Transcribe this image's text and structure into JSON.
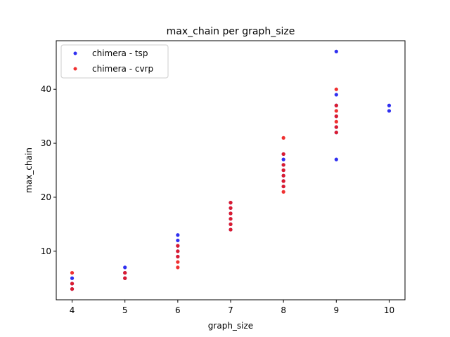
{
  "chart_data": {
    "type": "scatter",
    "title": "max_chain per graph_size",
    "xlabel": "graph_size",
    "ylabel": "max_chain",
    "xlim": [
      3.7,
      10.3
    ],
    "ylim": [
      1.0,
      49.0
    ],
    "xticks": [
      4,
      5,
      6,
      7,
      8,
      9,
      10
    ],
    "yticks": [
      10,
      20,
      30,
      40
    ],
    "grid": false,
    "legend_position": "top-left",
    "series": [
      {
        "name": "chimera - tsp",
        "color": "#1a1aee",
        "points": [
          [
            4,
            3
          ],
          [
            4,
            4
          ],
          [
            4,
            5
          ],
          [
            5,
            5
          ],
          [
            5,
            6
          ],
          [
            5,
            7
          ],
          [
            6,
            9
          ],
          [
            6,
            10
          ],
          [
            6,
            11
          ],
          [
            6,
            12
          ],
          [
            6,
            13
          ],
          [
            7,
            14
          ],
          [
            7,
            15
          ],
          [
            7,
            16
          ],
          [
            7,
            17
          ],
          [
            7,
            18
          ],
          [
            7,
            19
          ],
          [
            8,
            22
          ],
          [
            8,
            23
          ],
          [
            8,
            24
          ],
          [
            8,
            25
          ],
          [
            8,
            26
          ],
          [
            8,
            27
          ],
          [
            8,
            28
          ],
          [
            9,
            27
          ],
          [
            9,
            32
          ],
          [
            9,
            33
          ],
          [
            9,
            35
          ],
          [
            9,
            37
          ],
          [
            9,
            39
          ],
          [
            9,
            47
          ],
          [
            10,
            36
          ],
          [
            10,
            37
          ]
        ]
      },
      {
        "name": "chimera - cvrp",
        "color": "#ee1a1a",
        "points": [
          [
            4,
            3
          ],
          [
            4,
            4
          ],
          [
            4,
            6
          ],
          [
            5,
            5
          ],
          [
            5,
            6
          ],
          [
            6,
            7
          ],
          [
            6,
            8
          ],
          [
            6,
            9
          ],
          [
            6,
            10
          ],
          [
            6,
            11
          ],
          [
            7,
            14
          ],
          [
            7,
            15
          ],
          [
            7,
            16
          ],
          [
            7,
            17
          ],
          [
            7,
            18
          ],
          [
            7,
            19
          ],
          [
            8,
            21
          ],
          [
            8,
            22
          ],
          [
            8,
            23
          ],
          [
            8,
            24
          ],
          [
            8,
            25
          ],
          [
            8,
            26
          ],
          [
            8,
            28
          ],
          [
            8,
            31
          ],
          [
            9,
            32
          ],
          [
            9,
            33
          ],
          [
            9,
            34
          ],
          [
            9,
            35
          ],
          [
            9,
            36
          ],
          [
            9,
            37
          ],
          [
            9,
            40
          ]
        ]
      }
    ]
  }
}
